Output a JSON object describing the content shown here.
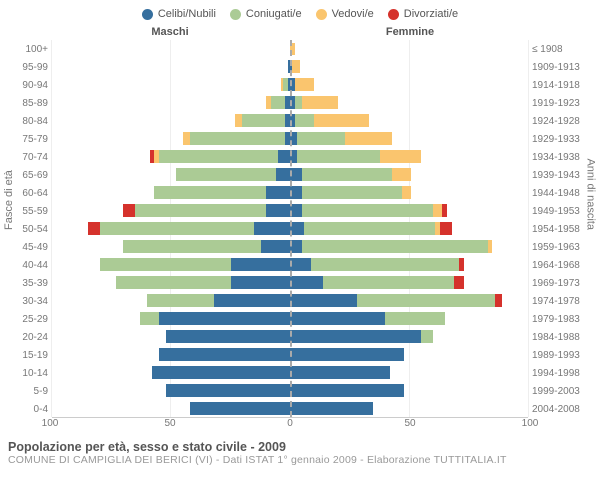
{
  "legend": {
    "items": [
      {
        "label": "Celibi/Nubili",
        "color": "#366f9e"
      },
      {
        "label": "Coniugati/e",
        "color": "#abcb95"
      },
      {
        "label": "Vedovi/e",
        "color": "#fac56e"
      },
      {
        "label": "Divorziati/e",
        "color": "#d5322c"
      }
    ]
  },
  "headers": {
    "male": "Maschi",
    "female": "Femmine"
  },
  "axis": {
    "left_label": "Fasce di età",
    "right_label": "Anni di nascita",
    "x_ticks": [
      100,
      50,
      0,
      50,
      100
    ],
    "x_max": 100
  },
  "colors": {
    "single": "#366f9e",
    "married": "#abcb95",
    "widowed": "#fac56e",
    "divorced": "#d5322c",
    "grid": "#eeeeee",
    "center": "#aaaaaa",
    "text_muted": "#888888"
  },
  "age_labels": [
    "100+",
    "95-99",
    "90-94",
    "85-89",
    "80-84",
    "75-79",
    "70-74",
    "65-69",
    "60-64",
    "55-59",
    "50-54",
    "45-49",
    "40-44",
    "35-39",
    "30-34",
    "25-29",
    "20-24",
    "15-19",
    "10-14",
    "5-9",
    "0-4"
  ],
  "birth_labels": [
    "≤ 1908",
    "1909-1913",
    "1914-1918",
    "1919-1923",
    "1924-1928",
    "1929-1933",
    "1934-1938",
    "1939-1943",
    "1944-1948",
    "1949-1953",
    "1954-1958",
    "1959-1963",
    "1964-1968",
    "1969-1973",
    "1974-1978",
    "1979-1983",
    "1984-1988",
    "1989-1993",
    "1994-1998",
    "1999-2003",
    "2004-2008"
  ],
  "rows": [
    {
      "m": {
        "single": 0,
        "married": 0,
        "widowed": 0,
        "divorced": 0
      },
      "f": {
        "single": 0,
        "married": 0,
        "widowed": 2,
        "divorced": 0
      }
    },
    {
      "m": {
        "single": 1,
        "married": 0,
        "widowed": 0,
        "divorced": 0
      },
      "f": {
        "single": 1,
        "married": 0,
        "widowed": 3,
        "divorced": 0
      }
    },
    {
      "m": {
        "single": 1,
        "married": 2,
        "widowed": 1,
        "divorced": 0
      },
      "f": {
        "single": 2,
        "married": 0,
        "widowed": 8,
        "divorced": 0
      }
    },
    {
      "m": {
        "single": 2,
        "married": 6,
        "widowed": 2,
        "divorced": 0
      },
      "f": {
        "single": 2,
        "married": 3,
        "widowed": 15,
        "divorced": 0
      }
    },
    {
      "m": {
        "single": 2,
        "married": 18,
        "widowed": 3,
        "divorced": 0
      },
      "f": {
        "single": 2,
        "married": 8,
        "widowed": 23,
        "divorced": 0
      }
    },
    {
      "m": {
        "single": 2,
        "married": 40,
        "widowed": 3,
        "divorced": 0
      },
      "f": {
        "single": 3,
        "married": 20,
        "widowed": 20,
        "divorced": 0
      }
    },
    {
      "m": {
        "single": 5,
        "married": 50,
        "widowed": 2,
        "divorced": 2
      },
      "f": {
        "single": 3,
        "married": 35,
        "widowed": 17,
        "divorced": 0
      }
    },
    {
      "m": {
        "single": 6,
        "married": 42,
        "widowed": 0,
        "divorced": 0
      },
      "f": {
        "single": 5,
        "married": 38,
        "widowed": 8,
        "divorced": 0
      }
    },
    {
      "m": {
        "single": 10,
        "married": 47,
        "widowed": 0,
        "divorced": 0
      },
      "f": {
        "single": 5,
        "married": 42,
        "widowed": 4,
        "divorced": 0
      }
    },
    {
      "m": {
        "single": 10,
        "married": 55,
        "widowed": 0,
        "divorced": 5
      },
      "f": {
        "single": 5,
        "married": 55,
        "widowed": 4,
        "divorced": 2
      }
    },
    {
      "m": {
        "single": 15,
        "married": 65,
        "widowed": 0,
        "divorced": 5
      },
      "f": {
        "single": 6,
        "married": 55,
        "widowed": 2,
        "divorced": 5
      }
    },
    {
      "m": {
        "single": 12,
        "married": 58,
        "widowed": 0,
        "divorced": 0
      },
      "f": {
        "single": 5,
        "married": 78,
        "widowed": 2,
        "divorced": 0
      }
    },
    {
      "m": {
        "single": 25,
        "married": 55,
        "widowed": 0,
        "divorced": 0
      },
      "f": {
        "single": 9,
        "married": 62,
        "widowed": 0,
        "divorced": 2
      }
    },
    {
      "m": {
        "single": 25,
        "married": 48,
        "widowed": 0,
        "divorced": 0
      },
      "f": {
        "single": 14,
        "married": 55,
        "widowed": 0,
        "divorced": 4
      }
    },
    {
      "m": {
        "single": 32,
        "married": 28,
        "widowed": 0,
        "divorced": 0
      },
      "f": {
        "single": 28,
        "married": 58,
        "widowed": 0,
        "divorced": 3
      }
    },
    {
      "m": {
        "single": 55,
        "married": 8,
        "widowed": 0,
        "divorced": 0
      },
      "f": {
        "single": 40,
        "married": 25,
        "widowed": 0,
        "divorced": 0
      }
    },
    {
      "m": {
        "single": 52,
        "married": 0,
        "widowed": 0,
        "divorced": 0
      },
      "f": {
        "single": 55,
        "married": 5,
        "widowed": 0,
        "divorced": 0
      }
    },
    {
      "m": {
        "single": 55,
        "married": 0,
        "widowed": 0,
        "divorced": 0
      },
      "f": {
        "single": 48,
        "married": 0,
        "widowed": 0,
        "divorced": 0
      }
    },
    {
      "m": {
        "single": 58,
        "married": 0,
        "widowed": 0,
        "divorced": 0
      },
      "f": {
        "single": 42,
        "married": 0,
        "widowed": 0,
        "divorced": 0
      }
    },
    {
      "m": {
        "single": 52,
        "married": 0,
        "widowed": 0,
        "divorced": 0
      },
      "f": {
        "single": 48,
        "married": 0,
        "widowed": 0,
        "divorced": 0
      }
    },
    {
      "m": {
        "single": 42,
        "married": 0,
        "widowed": 0,
        "divorced": 0
      },
      "f": {
        "single": 35,
        "married": 0,
        "widowed": 0,
        "divorced": 0
      }
    }
  ],
  "footer": {
    "title": "Popolazione per età, sesso e stato civile - 2009",
    "subtitle": "COMUNE DI CAMPIGLIA DEI BERICI (VI) - Dati ISTAT 1° gennaio 2009 - Elaborazione TUTTITALIA.IT"
  }
}
